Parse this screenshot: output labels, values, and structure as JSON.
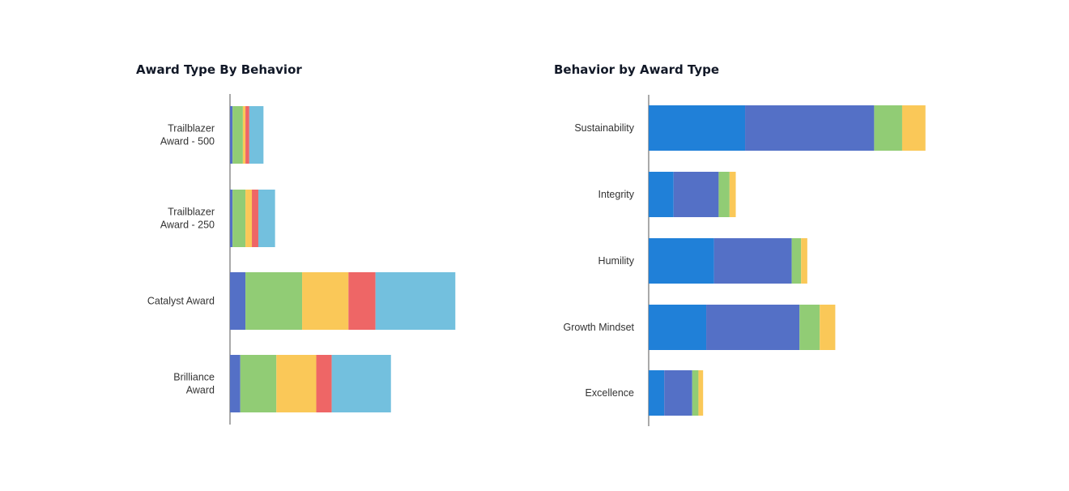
{
  "chart_data": [
    {
      "type": "bar",
      "orientation": "horizontal",
      "stacked": true,
      "title": "Award Type By Behavior",
      "categories": [
        "Trailblazer Award - 500",
        "Trailblazer Award - 250",
        "Catalyst Award",
        "Brilliance Award"
      ],
      "category_label_lines": [
        [
          "Trailblazer",
          "Award - 500"
        ],
        [
          "Trailblazer",
          "Award - 250"
        ],
        [
          "Catalyst Award"
        ],
        [
          "Brilliance",
          "Award"
        ]
      ],
      "series": [
        {
          "color": "#5470c6",
          "values": [
            1,
            1,
            6,
            4
          ]
        },
        {
          "color": "#91cc75",
          "values": [
            4,
            5,
            22,
            14
          ]
        },
        {
          "color": "#fac858",
          "values": [
            1,
            2.5,
            18,
            15.5
          ]
        },
        {
          "color": "#ee6666",
          "values": [
            1.5,
            2.5,
            10.5,
            6
          ]
        },
        {
          "color": "#73c0de",
          "values": [
            5.5,
            6.5,
            31,
            23
          ]
        }
      ],
      "xlim": [
        0,
        100
      ],
      "grid": false
    },
    {
      "type": "bar",
      "orientation": "horizontal",
      "stacked": true,
      "title": "Behavior by Award Type",
      "categories": [
        "Sustainability",
        "Integrity",
        "Humility",
        "Growth Mindset",
        "Excellence"
      ],
      "category_label_lines": [
        [
          "Sustainability"
        ],
        [
          "Integrity"
        ],
        [
          "Humility"
        ],
        [
          "Growth Mindset"
        ],
        [
          "Excellence"
        ]
      ],
      "series": [
        {
          "color": "#2080d8",
          "values": [
            31,
            8,
            21,
            18.5,
            5
          ]
        },
        {
          "color": "#5470c6",
          "values": [
            41.5,
            14.5,
            25,
            30,
            9
          ]
        },
        {
          "color": "#91cc75",
          "values": [
            9,
            3.5,
            3,
            6.5,
            2
          ]
        },
        {
          "color": "#fac858",
          "values": [
            7.5,
            2,
            2,
            5,
            1.5
          ]
        }
      ],
      "xlim": [
        0,
        100
      ],
      "grid": false
    }
  ],
  "axis_color": "#555555"
}
